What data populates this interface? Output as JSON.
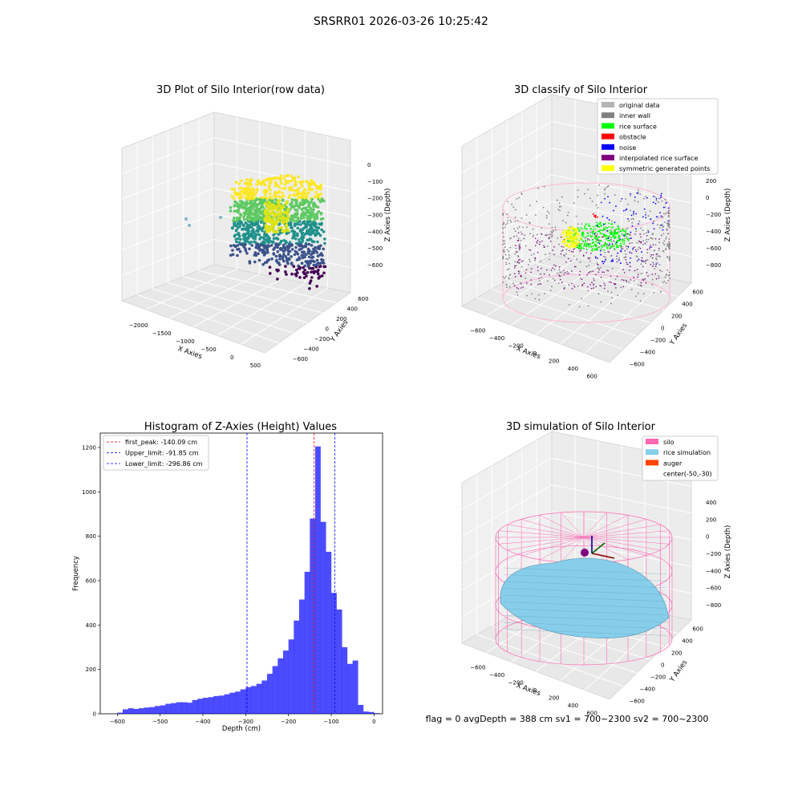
{
  "figure": {
    "suptitle": "SRSRR01 2026-03-26 10:25:42",
    "footer": "flag = 0     avgDepth = 388 cm  sv1 = 700~2300  sv2 = 700~2300"
  },
  "chart_data": [
    {
      "type": "scatter",
      "projection": "3d",
      "title": "3D Plot of Silo Interior(row data)",
      "xlabel": "X Axies",
      "ylabel": "Y Axies",
      "zlabel": "Z Axies (Depth)",
      "xticks": [
        "−2000",
        "−1500",
        "−1000",
        "−500",
        "0",
        "500"
      ],
      "yticks": [
        "−600",
        "−400",
        "−200",
        "0",
        "200",
        "400",
        "600"
      ],
      "zticks": [
        "0",
        "−100",
        "−200",
        "−300",
        "−400",
        "−500",
        "−600"
      ],
      "xlim": [
        -2200,
        600
      ],
      "ylim": [
        -650,
        650
      ],
      "zlim": [
        -650,
        0
      ],
      "colormap": "viridis",
      "grid": true
    },
    {
      "type": "scatter",
      "projection": "3d",
      "title": "3D classify of Silo Interior",
      "xlabel": "X Axies",
      "ylabel": "Y Axies",
      "zlabel": "Z Axies (Depth)",
      "xticks": [
        "−600",
        "−400",
        "−200",
        "0",
        "200",
        "400",
        "600"
      ],
      "yticks": [
        "−600",
        "−400",
        "−200",
        "0",
        "200",
        "400",
        "600"
      ],
      "zticks": [
        "200",
        "0",
        "−200",
        "−400",
        "−600",
        "−800"
      ],
      "legend": [
        {
          "label": "original data",
          "color": "#b4b4b4"
        },
        {
          "label": "inner wall",
          "color": "#808080"
        },
        {
          "label": "rice surface",
          "color": "#00ff00"
        },
        {
          "label": "obstacle",
          "color": "#ff0000"
        },
        {
          "label": "noise",
          "color": "#0000ff"
        },
        {
          "label": "interpolated rice surface",
          "color": "#800080"
        },
        {
          "label": "symmetric generated points",
          "color": "#ffff00"
        }
      ],
      "legend_loc": "upper right",
      "grid": true
    },
    {
      "type": "bar",
      "subtype": "histogram",
      "title": "Histogram of Z-Axies (Height) Values",
      "xlabel": "Depth (cm)",
      "ylabel": "Frequency",
      "xlim": [
        -640,
        20
      ],
      "ylim": [
        0,
        1265
      ],
      "xticks": [
        -600,
        -500,
        -400,
        -300,
        -200,
        -100,
        0
      ],
      "xtick_labels": [
        "−600",
        "−500",
        "−400",
        "−300",
        "−200",
        "−100",
        "0"
      ],
      "yticks": [
        0,
        200,
        400,
        600,
        800,
        1000,
        1200
      ],
      "bin_width": 12.5,
      "bin_start": -600,
      "bar_color": "#0000ff",
      "values": [
        5,
        20,
        25,
        22,
        25,
        28,
        30,
        35,
        38,
        45,
        48,
        52,
        52,
        50,
        62,
        68,
        72,
        75,
        80,
        82,
        88,
        95,
        100,
        110,
        120,
        125,
        135,
        150,
        180,
        215,
        250,
        285,
        335,
        420,
        515,
        640,
        880,
        1205,
        865,
        730,
        545,
        470,
        300,
        225,
        240,
        40,
        10,
        8,
        3
      ],
      "lines": [
        {
          "label": "first_peak: -140.09 cm",
          "x": -140.09,
          "color": "#ff0000"
        },
        {
          "label": "Upper_limit: -91.85 cm",
          "x": -91.85,
          "color": "#0000ff"
        },
        {
          "label": "Lower_limit: -296.86 cm",
          "x": -296.86,
          "color": "#0000ff"
        }
      ],
      "legend_loc": "upper left",
      "grid": false
    },
    {
      "type": "surface",
      "projection": "3d",
      "title": "3D simulation of Silo Interior",
      "xlabel": "X Axies",
      "ylabel": "Y Axies",
      "zlabel": "Z Axies (Depth)",
      "xticks": [
        "−600",
        "−400",
        "−200",
        "0",
        "200",
        "400",
        "600"
      ],
      "yticks": [
        "−600",
        "−400",
        "−200",
        "0",
        "200",
        "400",
        "600"
      ],
      "zticks": [
        "400",
        "200",
        "0",
        "−200",
        "−400",
        "−600",
        "−800"
      ],
      "legend": [
        {
          "label": "silo",
          "color": "#ff69b4"
        },
        {
          "label": "rice simulation",
          "color": "#87ceeb"
        },
        {
          "label": "auger",
          "color": "#ff4500"
        },
        {
          "label": "center(-50,-30)",
          "color": ""
        }
      ],
      "legend_loc": "upper right",
      "grid": true
    }
  ]
}
